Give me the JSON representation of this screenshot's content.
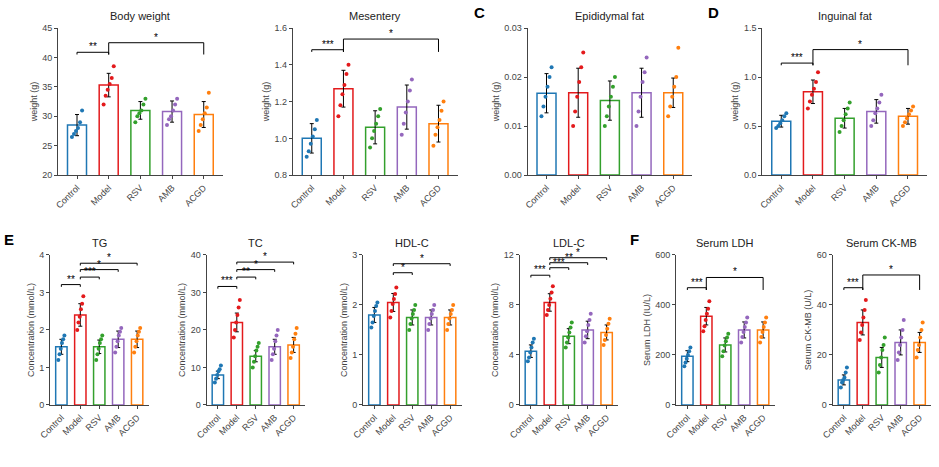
{
  "chart_data": [
    {
      "type": "bar",
      "title": "Body weight",
      "ylabel": "weight (g)",
      "categories": [
        "Control",
        "Model",
        "RSV",
        "AMB",
        "ACGD"
      ],
      "colors": [
        "#1f77b4",
        "#e31a1c",
        "#33a02c",
        "#9467bd",
        "#ff7f0e"
      ],
      "values": [
        28.5,
        35.3,
        31.0,
        30.8,
        30.3
      ],
      "errors": [
        1.8,
        2.0,
        1.5,
        1.8,
        2.2
      ],
      "points": [
        [
          26.5,
          27.0,
          27.5,
          28.0,
          29.0,
          31.0
        ],
        [
          32.0,
          33.5,
          34.5,
          35.5,
          36.5,
          38.5
        ],
        [
          29.0,
          30.0,
          30.5,
          31.0,
          32.0,
          33.0
        ],
        [
          28.5,
          29.5,
          30.0,
          31.0,
          32.0,
          33.0
        ],
        [
          27.5,
          28.5,
          29.5,
          30.5,
          31.5,
          34.0
        ]
      ],
      "ylim": [
        20,
        45
      ],
      "yticks": [
        20,
        25,
        30,
        35,
        40,
        45
      ],
      "grid": false,
      "brackets": [
        {
          "from": "Control",
          "to": "Model",
          "y": 40.5,
          "top": null,
          "label": "**"
        },
        {
          "from": "Model",
          "to": "ACGD",
          "y": 40.5,
          "top": 42.5,
          "label": "*"
        }
      ]
    },
    {
      "type": "bar",
      "title": "Mesentery",
      "ylabel": "weight (g)",
      "categories": [
        "Control",
        "Model",
        "RSV",
        "AMB",
        "ACGD"
      ],
      "colors": [
        "#1f77b4",
        "#e31a1c",
        "#33a02c",
        "#9467bd",
        "#ff7f0e"
      ],
      "values": [
        1.0,
        1.27,
        1.06,
        1.17,
        1.08
      ],
      "errors": [
        0.08,
        0.1,
        0.09,
        0.12,
        0.1
      ],
      "points": [
        [
          0.9,
          0.93,
          0.97,
          1.01,
          1.05,
          1.1
        ],
        [
          1.12,
          1.18,
          1.24,
          1.29,
          1.35,
          1.4
        ],
        [
          0.95,
          1.0,
          1.04,
          1.08,
          1.12,
          1.16
        ],
        [
          1.02,
          1.08,
          1.14,
          1.2,
          1.26,
          1.32
        ],
        [
          0.96,
          1.02,
          1.06,
          1.1,
          1.15,
          1.2
        ]
      ],
      "ylim": [
        0.8,
        1.6
      ],
      "yticks": [
        0.8,
        {
          "value": 1.0,
          "label": "1.0"
        },
        1.2,
        1.4,
        1.6
      ],
      "grid": false,
      "brackets": [
        {
          "from": "Control",
          "to": "Model",
          "y": 1.47,
          "top": null,
          "label": "***"
        },
        {
          "from": "Model",
          "to": "ACGD",
          "y": 1.47,
          "top": 1.54,
          "label": "*"
        }
      ]
    },
    {
      "type": "bar",
      "title": "Epididymal fat",
      "ylabel": "weight (g)",
      "annotations": [
        "C"
      ],
      "categories": [
        "Control",
        "Model",
        "RSV",
        "AMB",
        "ACGD"
      ],
      "colors": [
        "#1f77b4",
        "#e31a1c",
        "#33a02c",
        "#9467bd",
        "#ff7f0e"
      ],
      "values": [
        0.0167,
        0.0168,
        0.0152,
        0.0168,
        0.0168
      ],
      "errors": [
        0.004,
        0.005,
        0.004,
        0.005,
        0.003
      ],
      "points": [
        [
          0.012,
          0.014,
          0.016,
          0.018,
          0.02,
          0.022
        ],
        [
          0.01,
          0.013,
          0.016,
          0.019,
          0.022,
          0.025
        ],
        [
          0.01,
          0.012,
          0.014,
          0.016,
          0.018,
          0.02
        ],
        [
          0.01,
          0.013,
          0.016,
          0.019,
          0.021,
          0.024
        ],
        [
          0.012,
          0.014,
          0.016,
          0.018,
          0.02,
          0.026
        ]
      ],
      "ylim": [
        0.0,
        0.03
      ],
      "yticks": [
        {
          "value": 0.0,
          "label": "0.00"
        },
        0.01,
        0.02,
        0.03
      ],
      "grid": false,
      "brackets": []
    },
    {
      "type": "bar",
      "title": "Inguinal fat",
      "ylabel": "weight (g)",
      "annotations": [
        "D"
      ],
      "categories": [
        "Control",
        "Model",
        "RSV",
        "AMB",
        "ACGD"
      ],
      "colors": [
        "#1f77b4",
        "#e31a1c",
        "#33a02c",
        "#9467bd",
        "#ff7f0e"
      ],
      "values": [
        0.55,
        0.85,
        0.58,
        0.65,
        0.6
      ],
      "errors": [
        0.06,
        0.12,
        0.1,
        0.12,
        0.08
      ],
      "points": [
        [
          0.48,
          0.5,
          0.53,
          0.56,
          0.6,
          0.63
        ],
        [
          0.68,
          0.75,
          0.82,
          0.88,
          0.95,
          1.05
        ],
        [
          0.44,
          0.5,
          0.56,
          0.62,
          0.68,
          0.74
        ],
        [
          0.5,
          0.56,
          0.63,
          0.68,
          0.74,
          0.82
        ],
        [
          0.5,
          0.54,
          0.58,
          0.62,
          0.66,
          0.7
        ]
      ],
      "ylim": [
        0.0,
        1.5
      ],
      "yticks": [
        {
          "value": 0.0,
          "label": "0.0"
        },
        0.5,
        {
          "value": 1.0,
          "label": "1.0"
        },
        1.5
      ],
      "grid": false,
      "brackets": [
        {
          "from": "Control",
          "to": "Model",
          "y": 1.12,
          "top": null,
          "label": "***"
        },
        {
          "from": "Model",
          "to": "ACGD",
          "y": 1.12,
          "top": 1.28,
          "label": "*"
        }
      ]
    },
    {
      "type": "bar",
      "title": "TG",
      "ylabel": "Concentration (mmol/L)",
      "annotations": [
        "E"
      ],
      "categories": [
        "Control",
        "Model",
        "RSV",
        "AMB",
        "ACGD"
      ],
      "colors": [
        "#1f77b4",
        "#e31a1c",
        "#33a02c",
        "#9467bd",
        "#ff7f0e"
      ],
      "values": [
        1.55,
        2.4,
        1.55,
        1.75,
        1.75
      ],
      "errors": [
        0.2,
        0.3,
        0.18,
        0.22,
        0.22
      ],
      "points": [
        [
          1.2,
          1.35,
          1.5,
          1.65,
          1.75,
          1.85
        ],
        [
          2.0,
          2.2,
          2.35,
          2.55,
          2.7,
          2.9
        ],
        [
          1.2,
          1.35,
          1.5,
          1.65,
          1.75,
          1.85
        ],
        [
          1.4,
          1.55,
          1.7,
          1.85,
          1.95,
          2.05
        ],
        [
          1.4,
          1.55,
          1.7,
          1.85,
          1.95,
          2.05
        ]
      ],
      "ylim": [
        0,
        4
      ],
      "yticks": [
        0,
        1,
        2,
        3,
        4
      ],
      "grid": false,
      "brackets": [
        {
          "from": "Control",
          "to": "Model",
          "y": 3.15,
          "top": null,
          "label": "**"
        },
        {
          "from": "Model",
          "to": "RSV",
          "y": 3.35,
          "top": null,
          "label": "***"
        },
        {
          "from": "Model",
          "to": "AMB",
          "y": 3.55,
          "top": null,
          "label": "*"
        },
        {
          "from": "Model",
          "to": "ACGD",
          "y": 3.72,
          "top": null,
          "label": "*"
        }
      ]
    },
    {
      "type": "bar",
      "title": "TC",
      "ylabel": "Concentration (mmol/L)",
      "categories": [
        "Control",
        "Model",
        "RSV",
        "AMB",
        "ACGD"
      ],
      "colors": [
        "#1f77b4",
        "#e31a1c",
        "#33a02c",
        "#9467bd",
        "#ff7f0e"
      ],
      "values": [
        8.0,
        22.0,
        13.0,
        15.5,
        16.0
      ],
      "errors": [
        1.0,
        2.5,
        1.5,
        2.0,
        2.0
      ],
      "points": [
        [
          6.0,
          7.0,
          8.0,
          9.0,
          9.5,
          10.5
        ],
        [
          18.0,
          20.0,
          22.0,
          24.0,
          26.0,
          28.0
        ],
        [
          10.0,
          11.5,
          13.0,
          14.5,
          15.5,
          16.5
        ],
        [
          12.0,
          13.5,
          15.0,
          17.0,
          18.5,
          20.0
        ],
        [
          12.5,
          14.0,
          15.5,
          17.5,
          19.0,
          20.5
        ]
      ],
      "ylim": [
        0,
        40
      ],
      "yticks": [
        0,
        10,
        20,
        30,
        40
      ],
      "grid": false,
      "brackets": [
        {
          "from": "Control",
          "to": "Model",
          "y": 31.0,
          "top": null,
          "label": "***"
        },
        {
          "from": "Model",
          "to": "RSV",
          "y": 33.5,
          "top": null,
          "label": "**"
        },
        {
          "from": "Model",
          "to": "AMB",
          "y": 35.5,
          "top": null,
          "label": "*"
        },
        {
          "from": "Model",
          "to": "ACGD",
          "y": 37.5,
          "top": null,
          "label": "*"
        }
      ]
    },
    {
      "type": "bar",
      "title": "HDL-C",
      "ylabel": "Concentration (mmol/L)",
      "categories": [
        "Control",
        "Model",
        "RSV",
        "AMB",
        "ACGD"
      ],
      "colors": [
        "#1f77b4",
        "#e31a1c",
        "#33a02c",
        "#9467bd",
        "#ff7f0e"
      ],
      "values": [
        1.8,
        2.05,
        1.75,
        1.75,
        1.75
      ],
      "errors": [
        0.15,
        0.18,
        0.15,
        0.15,
        0.15
      ],
      "points": [
        [
          1.55,
          1.65,
          1.78,
          1.88,
          1.98,
          2.05
        ],
        [
          1.75,
          1.88,
          2.02,
          2.12,
          2.22,
          2.35
        ],
        [
          1.5,
          1.62,
          1.73,
          1.82,
          1.9,
          2.0
        ],
        [
          1.5,
          1.62,
          1.73,
          1.82,
          1.9,
          2.0
        ],
        [
          1.5,
          1.62,
          1.73,
          1.82,
          1.9,
          2.0
        ]
      ],
      "ylim": [
        0,
        3
      ],
      "yticks": [
        0,
        1,
        2,
        3
      ],
      "grid": false,
      "brackets": [
        {
          "from": "Model",
          "to": "RSV",
          "y": 2.6,
          "top": null,
          "label": "*"
        },
        {
          "from": "Model",
          "to": "ACGD",
          "y": 2.78,
          "top": null,
          "label": "*"
        }
      ]
    },
    {
      "type": "bar",
      "title": "LDL-C",
      "ylabel": "Concentration (mmol/L)",
      "categories": [
        "Control",
        "Model",
        "RSV",
        "AMB",
        "ACGD"
      ],
      "colors": [
        "#1f77b4",
        "#e31a1c",
        "#33a02c",
        "#9467bd",
        "#ff7f0e"
      ],
      "values": [
        4.3,
        8.2,
        5.5,
        6.0,
        5.8
      ],
      "errors": [
        0.5,
        0.7,
        0.6,
        0.7,
        0.6
      ],
      "points": [
        [
          3.5,
          3.8,
          4.2,
          4.6,
          5.0,
          5.3
        ],
        [
          7.2,
          7.6,
          8.0,
          8.5,
          9.0,
          9.5
        ],
        [
          4.6,
          5.0,
          5.4,
          5.8,
          6.2,
          6.6
        ],
        [
          5.0,
          5.5,
          5.9,
          6.4,
          6.8,
          7.3
        ],
        [
          4.8,
          5.2,
          5.6,
          6.1,
          6.5,
          6.9
        ]
      ],
      "ylim": [
        0,
        12
      ],
      "yticks": [
        0,
        4,
        8,
        12
      ],
      "grid": false,
      "brackets": [
        {
          "from": "Control",
          "to": "Model",
          "y": 10.2,
          "top": null,
          "label": "***"
        },
        {
          "from": "Model",
          "to": "RSV",
          "y": 10.8,
          "top": null,
          "label": "***"
        },
        {
          "from": "Model",
          "to": "AMB",
          "y": 11.2,
          "top": null,
          "label": "**"
        },
        {
          "from": "Model",
          "to": "ACGD",
          "y": 11.6,
          "top": null,
          "label": "*"
        }
      ]
    },
    {
      "type": "bar",
      "title": "Serum LDH",
      "ylabel": "Serum LDH (IU/L)",
      "annotations": [
        "F"
      ],
      "categories": [
        "Control",
        "Model",
        "RSV",
        "AMB",
        "ACGD"
      ],
      "colors": [
        "#1f77b4",
        "#e31a1c",
        "#33a02c",
        "#9467bd",
        "#ff7f0e"
      ],
      "values": [
        195,
        355,
        240,
        300,
        300
      ],
      "errors": [
        22,
        35,
        28,
        32,
        32
      ],
      "points": [
        [
          155,
          170,
          185,
          200,
          215,
          230
        ],
        [
          295,
          315,
          340,
          365,
          385,
          415
        ],
        [
          195,
          215,
          238,
          255,
          270,
          285
        ],
        [
          250,
          272,
          292,
          312,
          330,
          350
        ],
        [
          250,
          272,
          292,
          312,
          330,
          350
        ]
      ],
      "ylim": [
        0,
        600
      ],
      "yticks": [
        0,
        200,
        400,
        600
      ],
      "grid": false,
      "brackets": [
        {
          "from": "Control",
          "to": "Model",
          "y": 460,
          "top": null,
          "label": "***"
        },
        {
          "from": "Model",
          "to": "ACGD",
          "y": 460,
          "top": 510,
          "label": "*"
        }
      ]
    },
    {
      "type": "bar",
      "title": "Serum CK-MB",
      "ylabel": "Serum CK-MB (U/L)",
      "categories": [
        "Control",
        "Model",
        "RSV",
        "AMB",
        "ACGD"
      ],
      "colors": [
        "#1f77b4",
        "#e31a1c",
        "#33a02c",
        "#9467bd",
        "#ff7f0e"
      ],
      "values": [
        10,
        33,
        19,
        25,
        25
      ],
      "errors": [
        2,
        5,
        4,
        5,
        4
      ],
      "points": [
        [
          7,
          9,
          10,
          11,
          13,
          15
        ],
        [
          26,
          29,
          32,
          35,
          38,
          42
        ],
        [
          13,
          16,
          19,
          22,
          24,
          27
        ],
        [
          18,
          21,
          24,
          27,
          30,
          34
        ],
        [
          19,
          22,
          24,
          27,
          30,
          33
        ]
      ],
      "ylim": [
        0,
        60
      ],
      "yticks": [
        0,
        20,
        40,
        60
      ],
      "grid": false,
      "brackets": [
        {
          "from": "Control",
          "to": "Model",
          "y": 46,
          "top": null,
          "label": "***"
        },
        {
          "from": "Model",
          "to": "ACGD",
          "y": 46,
          "top": 52,
          "label": "*"
        }
      ]
    }
  ]
}
